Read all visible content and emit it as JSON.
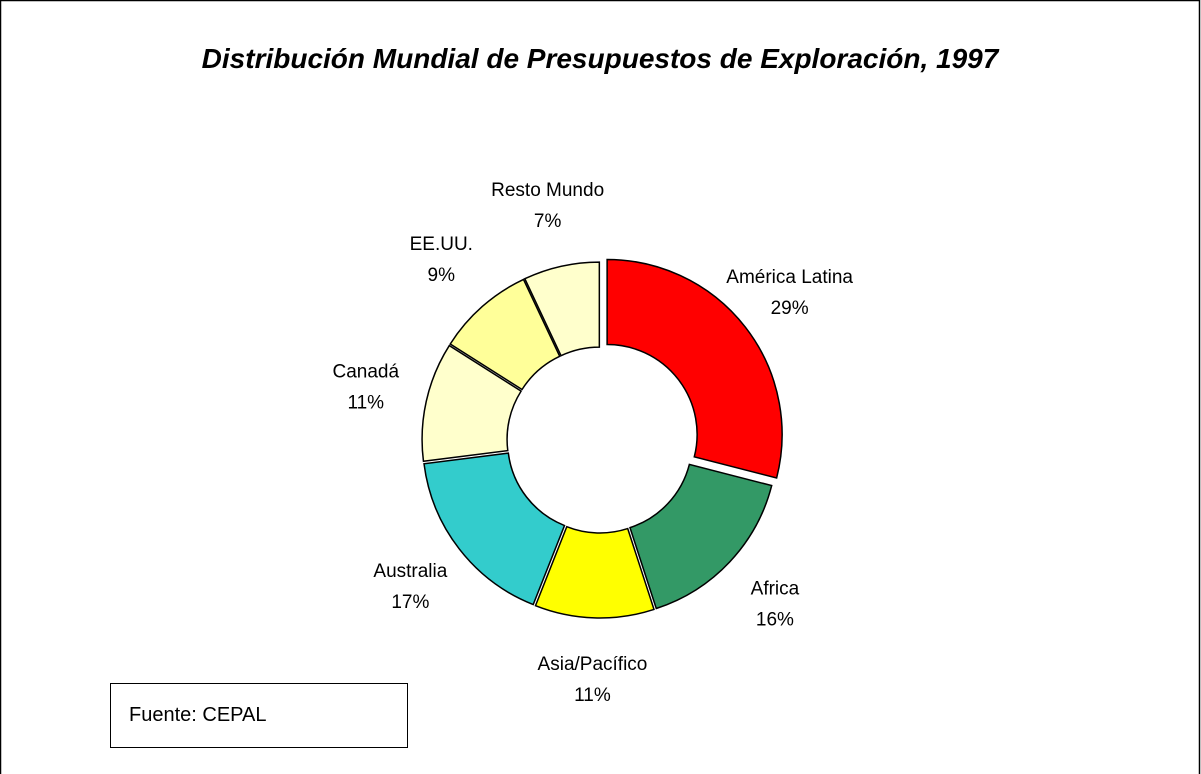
{
  "chart_data": {
    "type": "donut",
    "title": "Distribución Mundial de Presupuestos de Exploración, 1997",
    "categories": [
      "América Latina",
      "Africa",
      "Asia/Pacífico",
      "Australia",
      "Canadá",
      "EE.UU.",
      "Resto Mundo"
    ],
    "values": [
      29,
      16,
      11,
      17,
      11,
      9,
      7
    ],
    "value_labels": [
      "29%",
      "16%",
      "11%",
      "17%",
      "11%",
      "9%",
      "7%"
    ],
    "colors": [
      "#ff0000",
      "#339966",
      "#ffff00",
      "#33cccc",
      "#ffffcc",
      "#ffff99",
      "#ffffcc"
    ],
    "note": "Fuente: CEPAL"
  }
}
